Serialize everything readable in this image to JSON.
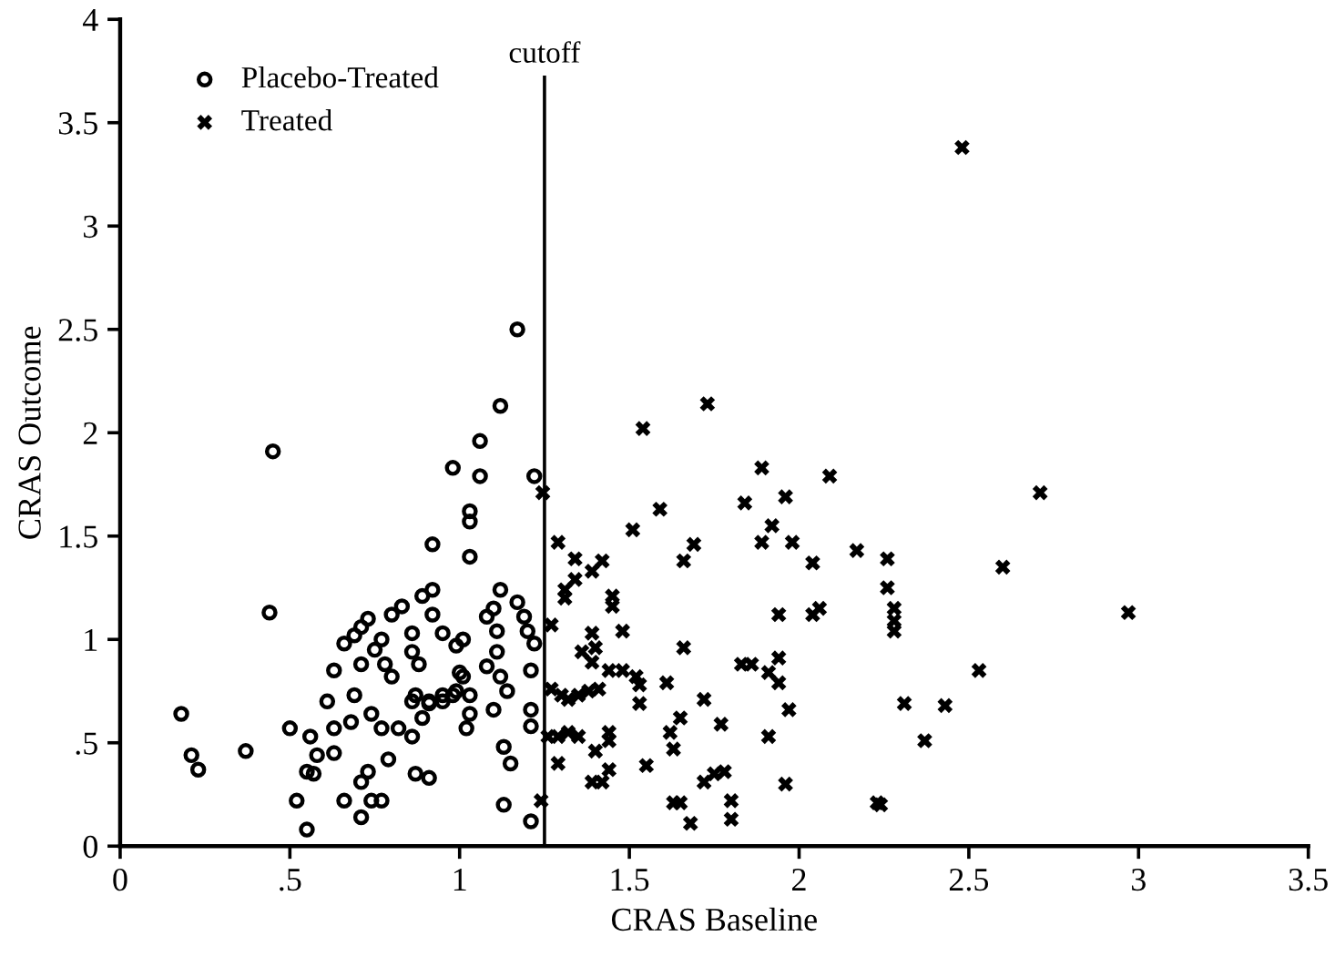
{
  "chart_data": {
    "type": "scatter",
    "xlabel": "CRAS Baseline",
    "ylabel": "CRAS Outcome",
    "xlim": [
      0,
      3.5
    ],
    "ylim": [
      0,
      4
    ],
    "xticks": [
      0,
      {
        "value": 0.5,
        "label": ".5"
      },
      1,
      1.5,
      2,
      2.5,
      3,
      3.5
    ],
    "yticks": [
      0,
      {
        "value": 0.5,
        "label": ".5"
      },
      1,
      1.5,
      2,
      2.5,
      3,
      3.5,
      4
    ],
    "legend": "top left",
    "grid": false,
    "ref_lines": [
      {
        "axis": "x",
        "value": 1.25,
        "label": "cutoff",
        "color": "#000000",
        "line_style": "solid"
      }
    ],
    "series": [
      {
        "name": "Placebo-Treated",
        "color": "#000000",
        "marker": "circle",
        "x": [
          0.18,
          0.21,
          0.23,
          0.37,
          0.45,
          0.44,
          0.5,
          0.52,
          0.55,
          0.55,
          0.57,
          0.56,
          0.58,
          0.61,
          0.63,
          0.63,
          0.66,
          0.66,
          0.63,
          0.69,
          0.71,
          0.71,
          0.73,
          0.74,
          0.77,
          0.71,
          0.71,
          0.74,
          0.68,
          0.77,
          0.78,
          0.79,
          0.77,
          0.8,
          0.8,
          0.83,
          0.82,
          0.86,
          0.86,
          0.87,
          0.91,
          0.87,
          0.86,
          0.86,
          0.88,
          0.89,
          0.92,
          0.92,
          0.91,
          0.95,
          0.95,
          0.92,
          0.98,
          0.98,
          0.99,
          1.0,
          1.17,
          1.12,
          1.06,
          1.06,
          1.22,
          1.03,
          1.03,
          1.03,
          1.12,
          1.1,
          1.17,
          1.08,
          1.19,
          1.11,
          1.2,
          1.22,
          1.01,
          1.11,
          1.08,
          1.21,
          1.01,
          0.99,
          1.12,
          1.14,
          1.03,
          1.1,
          1.03,
          0.91,
          0.89,
          0.95,
          1.02,
          1.21,
          1.21,
          1.13,
          1.15,
          1.13,
          1.21,
          0.75,
          0.69,
          0.73
        ],
        "values": [
          0.64,
          0.44,
          0.37,
          0.46,
          1.91,
          1.13,
          0.57,
          0.22,
          0.08,
          0.36,
          0.35,
          0.53,
          0.44,
          0.7,
          0.57,
          0.45,
          0.22,
          0.98,
          0.85,
          0.73,
          0.14,
          0.31,
          0.36,
          0.22,
          0.22,
          0.88,
          1.06,
          0.64,
          0.6,
          1.0,
          0.88,
          0.42,
          0.57,
          0.82,
          1.12,
          1.16,
          0.57,
          0.53,
          0.7,
          0.35,
          0.33,
          0.73,
          1.03,
          0.94,
          0.88,
          1.21,
          1.24,
          1.12,
          0.69,
          1.03,
          0.7,
          1.46,
          1.83,
          0.73,
          0.97,
          0.84,
          2.5,
          2.13,
          1.96,
          1.79,
          1.79,
          1.62,
          1.57,
          1.4,
          1.24,
          1.15,
          1.18,
          1.11,
          1.11,
          1.04,
          1.04,
          0.98,
          1.0,
          0.94,
          0.87,
          0.85,
          0.82,
          0.75,
          0.82,
          0.75,
          0.73,
          0.66,
          0.64,
          0.7,
          0.62,
          0.73,
          0.57,
          0.66,
          0.58,
          0.48,
          0.4,
          0.2,
          0.12,
          0.95,
          1.02,
          1.1
        ]
      },
      {
        "name": "Treated",
        "color": "#000000",
        "marker": "cross",
        "x": [
          1.245,
          1.29,
          1.34,
          1.39,
          1.42,
          1.31,
          1.34,
          1.31,
          1.45,
          1.45,
          1.27,
          1.39,
          1.48,
          1.36,
          1.4,
          1.39,
          1.44,
          1.48,
          1.52,
          1.53,
          1.61,
          1.66,
          1.27,
          1.3,
          1.32,
          1.35,
          1.38,
          1.41,
          1.53,
          1.72,
          1.26,
          1.29,
          1.32,
          1.35,
          1.4,
          1.44,
          1.44,
          1.29,
          1.39,
          1.42,
          1.44,
          1.24,
          1.55,
          1.62,
          1.65,
          1.63,
          1.77,
          1.72,
          1.75,
          1.78,
          1.63,
          1.65,
          1.68,
          1.8,
          1.8,
          1.91,
          1.96,
          1.83,
          1.86,
          1.91,
          1.94,
          1.94,
          1.97,
          2.23,
          1.51,
          1.59,
          1.54,
          1.73,
          1.66,
          1.69,
          1.84,
          1.89,
          1.96,
          1.92,
          1.89,
          1.98,
          2.04,
          2.09,
          2.17,
          2.04,
          2.06,
          2.48,
          2.71,
          2.26,
          2.26,
          2.6,
          2.28,
          2.28,
          2.28,
          2.97,
          1.94,
          2.53,
          2.31,
          2.43,
          2.37,
          2.24
        ],
        "values": [
          1.71,
          1.47,
          1.39,
          1.33,
          1.38,
          1.24,
          1.29,
          1.2,
          1.21,
          1.16,
          1.07,
          1.03,
          1.04,
          0.94,
          0.96,
          0.89,
          0.85,
          0.85,
          0.82,
          0.78,
          0.79,
          0.96,
          0.76,
          0.73,
          0.71,
          0.73,
          0.75,
          0.76,
          0.69,
          0.71,
          0.53,
          0.53,
          0.55,
          0.53,
          0.46,
          0.55,
          0.51,
          0.4,
          0.31,
          0.31,
          0.37,
          0.22,
          0.39,
          0.55,
          0.62,
          0.47,
          0.59,
          0.31,
          0.35,
          0.36,
          0.21,
          0.21,
          0.11,
          0.22,
          0.13,
          0.53,
          0.3,
          0.88,
          0.88,
          0.84,
          0.91,
          0.79,
          0.66,
          0.21,
          1.53,
          1.63,
          2.02,
          2.14,
          1.38,
          1.46,
          1.66,
          1.83,
          1.69,
          1.55,
          1.47,
          1.47,
          1.37,
          1.79,
          1.43,
          1.12,
          1.15,
          3.38,
          1.71,
          1.39,
          1.25,
          1.35,
          1.15,
          1.09,
          1.04,
          1.13,
          1.12,
          0.85,
          0.69,
          0.68,
          0.51,
          0.2
        ]
      }
    ]
  }
}
